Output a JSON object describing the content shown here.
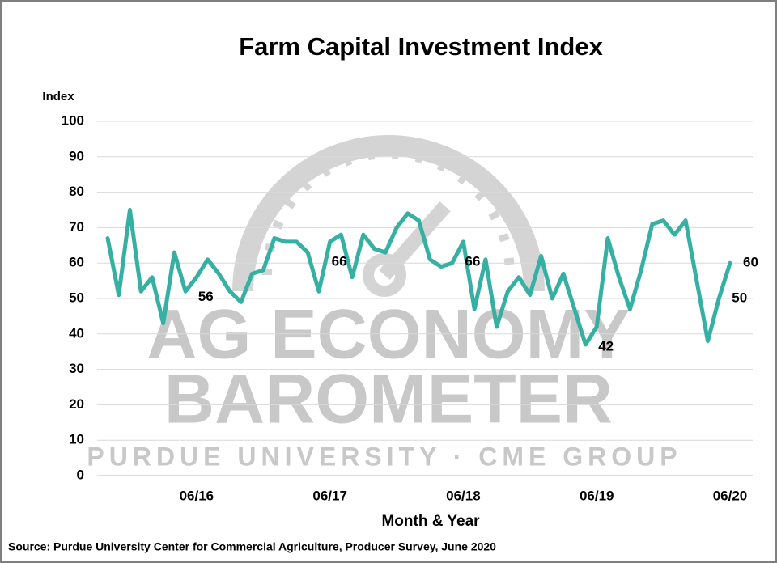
{
  "chart_data": {
    "type": "line",
    "title": "Farm Capital Investment Index",
    "y_label": "Index",
    "x_label": "Month & Year",
    "source": "Source: Purdue University Center for Commercial Agriculture, Producer Survey, June 2020",
    "watermark": [
      "AG ECONOMY",
      "BAROMETER",
      "PURDUE UNIVERSITY  ·  CME GROUP"
    ],
    "categories": [
      null,
      null,
      null,
      null,
      null,
      null,
      null,
      null,
      "06/16",
      null,
      null,
      null,
      null,
      null,
      null,
      null,
      null,
      null,
      null,
      null,
      "06/17",
      null,
      null,
      null,
      null,
      null,
      null,
      null,
      null,
      null,
      null,
      null,
      "06/18",
      null,
      null,
      null,
      null,
      null,
      null,
      null,
      null,
      null,
      null,
      null,
      "06/19",
      null,
      null,
      null,
      null,
      null,
      null,
      null,
      null,
      null,
      null,
      null,
      "06/20"
    ],
    "series": [
      {
        "name": "Farm Capital Investment Index",
        "color": "#36b0a3",
        "values": [
          67,
          51,
          75,
          52,
          56,
          43,
          63,
          52,
          56,
          61,
          57,
          52,
          49,
          57,
          58,
          67,
          66,
          66,
          63,
          52,
          66,
          68,
          56,
          68,
          64,
          63,
          70,
          74,
          72,
          61,
          59,
          60,
          66,
          47,
          61,
          42,
          52,
          56,
          51,
          62,
          50,
          57,
          47,
          37,
          42,
          67,
          56,
          47,
          58,
          71,
          72,
          68,
          72,
          55,
          38,
          50,
          60
        ],
        "value_labels": [
          null,
          null,
          null,
          null,
          null,
          null,
          null,
          null,
          56,
          null,
          null,
          null,
          null,
          null,
          null,
          null,
          null,
          null,
          null,
          null,
          66,
          null,
          null,
          null,
          null,
          null,
          null,
          null,
          null,
          null,
          null,
          null,
          66,
          null,
          null,
          null,
          null,
          null,
          null,
          null,
          null,
          null,
          null,
          null,
          42,
          null,
          null,
          null,
          null,
          null,
          null,
          null,
          null,
          null,
          null,
          50,
          60
        ]
      }
    ],
    "ylim": [
      0,
      100
    ],
    "yticks": [
      0,
      10,
      20,
      30,
      40,
      50,
      60,
      70,
      80,
      90,
      100
    ],
    "grid": true
  }
}
